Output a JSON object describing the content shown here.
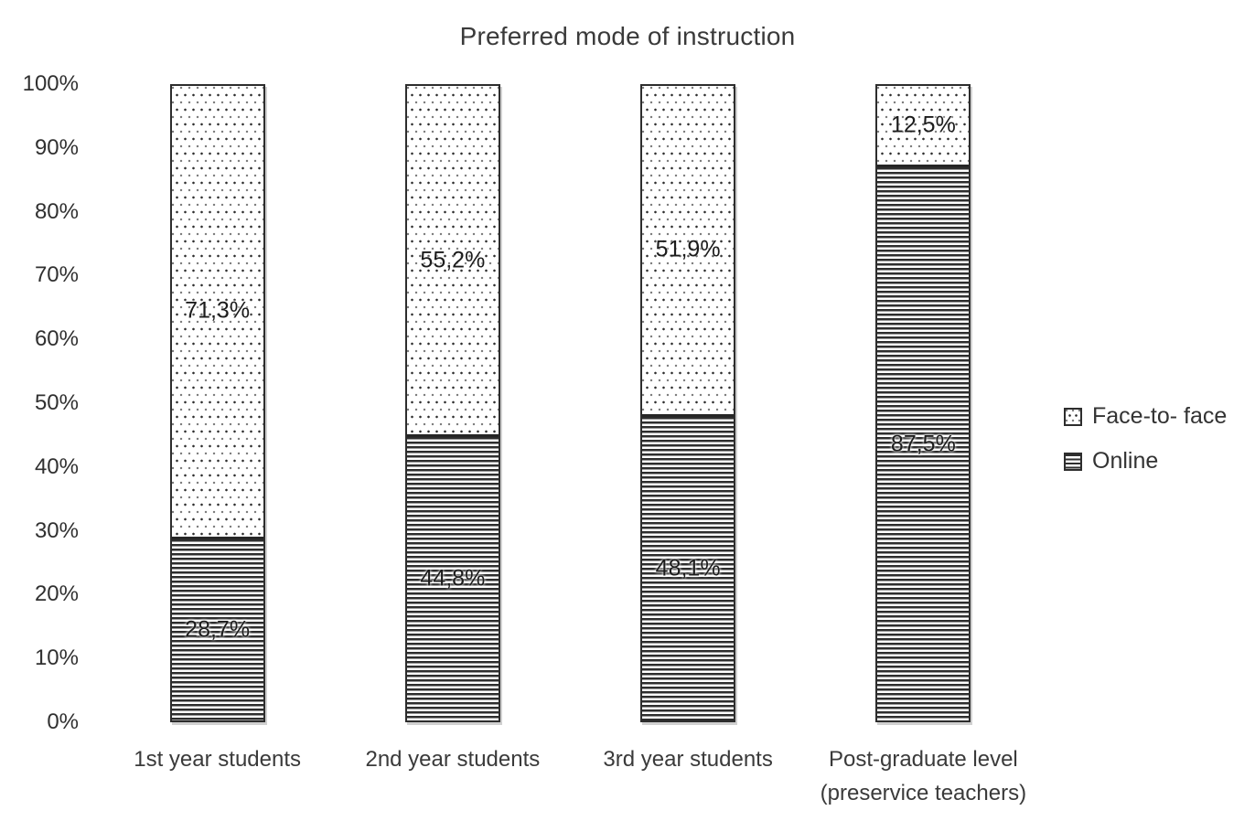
{
  "chart_data": {
    "type": "bar",
    "stacked": true,
    "orientation": "vertical",
    "title": "Preferred mode of instruction",
    "categories": [
      "1st year students",
      "2nd year students",
      "3rd year students",
      "Post-graduate level (preservice teachers)"
    ],
    "series": [
      {
        "name": "Online",
        "pattern": "horizontal-lines",
        "position": "bottom",
        "values": [
          28.7,
          44.8,
          48.1,
          87.5
        ],
        "labels": [
          "28,7%",
          "44,8%",
          "48,1%",
          "87,5%"
        ]
      },
      {
        "name": "Face-to- face",
        "pattern": "dots",
        "position": "top",
        "values": [
          71.3,
          55.2,
          51.9,
          12.5
        ],
        "labels": [
          "71,3%",
          "55,2%",
          "51,9%",
          "12,5%"
        ]
      }
    ],
    "y_axis": {
      "min": 0,
      "max": 100,
      "tick_step": 10,
      "ticks": [
        "100%",
        "90%",
        "80%",
        "70%",
        "60%",
        "50%",
        "40%",
        "30%",
        "20%",
        "10%",
        "0%"
      ]
    },
    "grid": "off",
    "legend": {
      "position": "right",
      "items": [
        {
          "label": "Face-to- face",
          "pattern": "dots"
        },
        {
          "label": "Online",
          "pattern": "horizontal-lines"
        }
      ]
    },
    "colors": {
      "pattern_ink": "#2e2e2e",
      "background": "#ffffff",
      "axis_text": "#303030",
      "title_text": "#3a3a3a",
      "data_label_text": "#1c1c1c"
    }
  }
}
